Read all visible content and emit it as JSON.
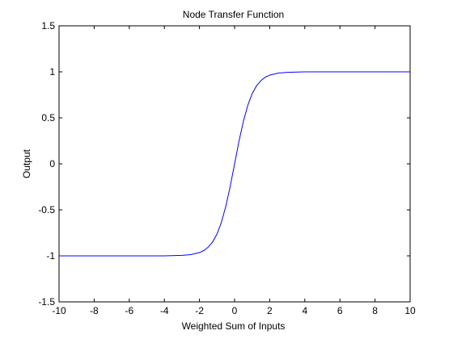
{
  "chart_data": {
    "type": "line",
    "title": "Node Transfer Function",
    "xlabel": "Weighted Sum of Inputs",
    "ylabel": "Output",
    "xlim": [
      -10,
      10
    ],
    "ylim": [
      -1.5,
      1.5
    ],
    "grid": false,
    "x_ticks": [
      -10,
      -8,
      -6,
      -4,
      -2,
      0,
      2,
      4,
      6,
      8,
      10
    ],
    "y_ticks": [
      -1.5,
      -1,
      -0.5,
      0,
      0.5,
      1,
      1.5
    ],
    "series": [
      {
        "color": "#0000ff",
        "x": [
          -10,
          -8,
          -6,
          -4,
          -3,
          -2.5,
          -2,
          -1.75,
          -1.5,
          -1.25,
          -1,
          -0.75,
          -0.5,
          -0.25,
          0,
          0.25,
          0.5,
          0.75,
          1,
          1.25,
          1.5,
          1.75,
          2,
          2.5,
          3,
          4,
          6,
          8,
          10
        ],
        "y": [
          -1,
          -1,
          -1,
          -1,
          -0.995,
          -0.987,
          -0.964,
          -0.942,
          -0.905,
          -0.848,
          -0.762,
          -0.635,
          -0.462,
          -0.245,
          0,
          0.245,
          0.462,
          0.635,
          0.762,
          0.848,
          0.905,
          0.942,
          0.964,
          0.987,
          0.995,
          1,
          1,
          1,
          1
        ]
      }
    ]
  }
}
